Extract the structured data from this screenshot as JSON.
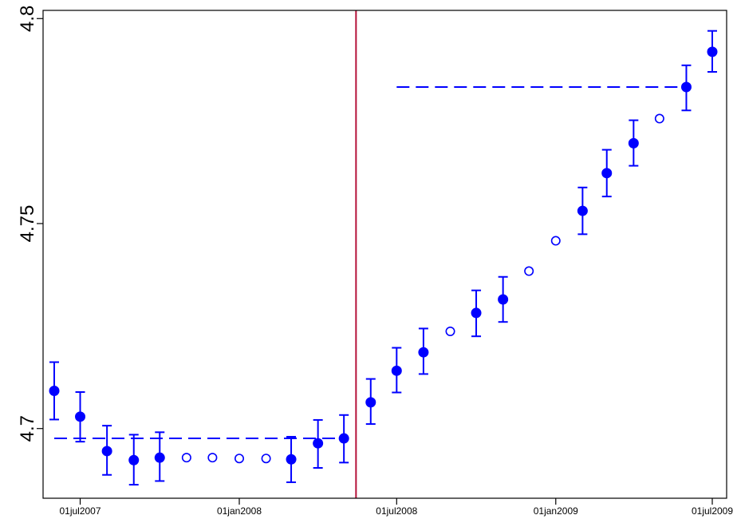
{
  "chart_data": {
    "type": "scatter",
    "title": "",
    "xlabel": "",
    "ylabel": "",
    "ylim": [
      4.683,
      4.802
    ],
    "xlim": [
      "2007-06-01",
      "2009-07-01"
    ],
    "y_ticks": [
      {
        "value": 4.7,
        "label": "4.7"
      },
      {
        "value": 4.75,
        "label": "4.75"
      },
      {
        "value": 4.8,
        "label": "4.8"
      }
    ],
    "x_ticks": [
      {
        "date": "2007-07-01",
        "label": "01jul2007"
      },
      {
        "date": "2008-01-01",
        "label": "01jan2008"
      },
      {
        "date": "2008-07-01",
        "label": "01jul2008"
      },
      {
        "date": "2009-01-01",
        "label": "01jan2009"
      },
      {
        "date": "2009-07-01",
        "label": "01jul2009"
      }
    ],
    "grid": false,
    "colors": {
      "points": "#0000ff",
      "event_line": "#b5123a",
      "axis": "#000000"
    },
    "event_line_date": "2008-05-15",
    "reference_lines": [
      {
        "y": 4.6976,
        "from": "2007-06-01",
        "to": "2008-05-01",
        "style": "dashed"
      },
      {
        "y": 4.7833,
        "from": "2008-07-01",
        "to": "2009-06-01",
        "style": "dashed"
      }
    ],
    "points": [
      {
        "date": "2007-06-01",
        "y": 4.7092,
        "lo": 4.7022,
        "hi": 4.7162,
        "filled": true
      },
      {
        "date": "2007-07-01",
        "y": 4.7029,
        "lo": 4.6968,
        "hi": 4.7089,
        "filled": true
      },
      {
        "date": "2007-08-01",
        "y": 4.6945,
        "lo": 4.6887,
        "hi": 4.7007,
        "filled": true
      },
      {
        "date": "2007-09-01",
        "y": 4.6923,
        "lo": 4.6863,
        "hi": 4.6985,
        "filled": true
      },
      {
        "date": "2007-10-01",
        "y": 4.6929,
        "lo": 4.6872,
        "hi": 4.6991,
        "filled": true
      },
      {
        "date": "2007-11-01",
        "y": 4.6929,
        "filled": false
      },
      {
        "date": "2007-12-01",
        "y": 4.6929,
        "filled": false
      },
      {
        "date": "2008-01-01",
        "y": 4.6927,
        "filled": false
      },
      {
        "date": "2008-02-01",
        "y": 4.6927,
        "filled": false
      },
      {
        "date": "2008-03-01",
        "y": 4.6925,
        "lo": 4.6869,
        "hi": 4.698,
        "filled": true
      },
      {
        "date": "2008-04-01",
        "y": 4.6964,
        "lo": 4.6904,
        "hi": 4.7021,
        "filled": true
      },
      {
        "date": "2008-05-01",
        "y": 4.6976,
        "lo": 4.6917,
        "hi": 4.7033,
        "filled": true
      },
      {
        "date": "2008-06-01",
        "y": 4.7064,
        "lo": 4.7011,
        "hi": 4.7121,
        "filled": true
      },
      {
        "date": "2008-07-01",
        "y": 4.7141,
        "lo": 4.7088,
        "hi": 4.7197,
        "filled": true
      },
      {
        "date": "2008-08-01",
        "y": 4.7186,
        "lo": 4.7133,
        "hi": 4.7244,
        "filled": true
      },
      {
        "date": "2008-09-01",
        "y": 4.7237,
        "filled": false
      },
      {
        "date": "2008-10-01",
        "y": 4.7282,
        "lo": 4.7225,
        "hi": 4.7337,
        "filled": true
      },
      {
        "date": "2008-11-01",
        "y": 4.7315,
        "lo": 4.726,
        "hi": 4.737,
        "filled": true
      },
      {
        "date": "2008-12-01",
        "y": 4.7384,
        "filled": false
      },
      {
        "date": "2009-01-01",
        "y": 4.7458,
        "filled": false
      },
      {
        "date": "2009-02-01",
        "y": 4.7531,
        "lo": 4.7474,
        "hi": 4.7588,
        "filled": true
      },
      {
        "date": "2009-03-01",
        "y": 4.7623,
        "lo": 4.7566,
        "hi": 4.768,
        "filled": true
      },
      {
        "date": "2009-04-01",
        "y": 4.7696,
        "lo": 4.7641,
        "hi": 4.7752,
        "filled": true
      },
      {
        "date": "2009-05-01",
        "y": 4.7756,
        "filled": false
      },
      {
        "date": "2009-06-01",
        "y": 4.7833,
        "lo": 4.7776,
        "hi": 4.7886,
        "filled": true
      },
      {
        "date": "2009-07-01",
        "y": 4.7919,
        "lo": 4.787,
        "hi": 4.797,
        "filled": true
      }
    ]
  }
}
